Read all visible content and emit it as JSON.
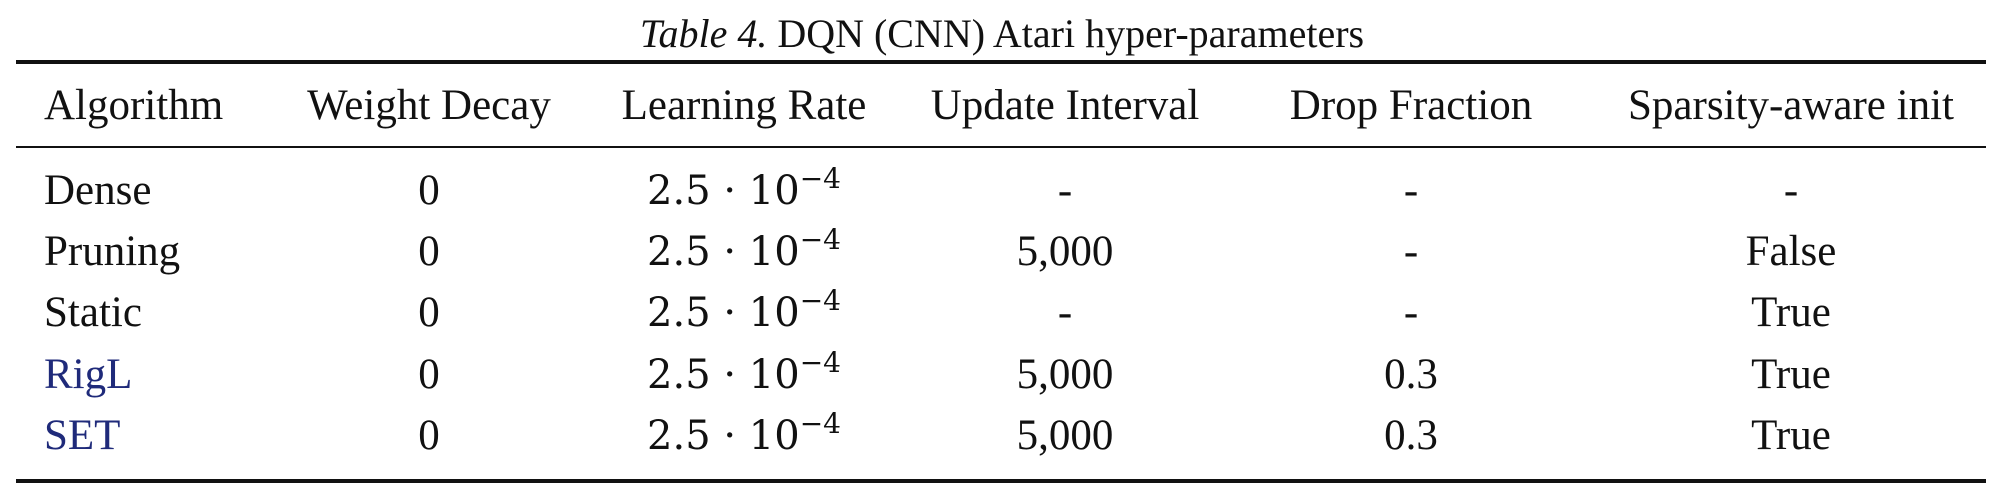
{
  "caption": {
    "label": "Table 4.",
    "title": "DQN (CNN) Atari hyper-parameters"
  },
  "headers": [
    "Algorithm",
    "Weight Decay",
    "Learning Rate",
    "Update Interval",
    "Drop Fraction",
    "Sparsity-aware init"
  ],
  "rows": [
    {
      "algorithm": "Dense",
      "weight_decay": "0",
      "lr_base": "2.5 · 10",
      "lr_exp": "−4",
      "update_interval": "-",
      "drop_fraction": "-",
      "sparsity_init": "-",
      "algorithm_color": "#111111"
    },
    {
      "algorithm": "Pruning",
      "weight_decay": "0",
      "lr_base": "2.5 · 10",
      "lr_exp": "−4",
      "update_interval": "5,000",
      "drop_fraction": "-",
      "sparsity_init": "False",
      "algorithm_color": "#111111"
    },
    {
      "algorithm": "Static",
      "weight_decay": "0",
      "lr_base": "2.5 · 10",
      "lr_exp": "−4",
      "update_interval": "-",
      "drop_fraction": "-",
      "sparsity_init": "True",
      "algorithm_color": "#111111"
    },
    {
      "algorithm": "RigL",
      "weight_decay": "0",
      "lr_base": "2.5 · 10",
      "lr_exp": "−4",
      "update_interval": "5,000",
      "drop_fraction": "0.3",
      "sparsity_init": "True",
      "algorithm_color": "#1f2a7a"
    },
    {
      "algorithm": "SET",
      "weight_decay": "0",
      "lr_base": "2.5 · 10",
      "lr_exp": "−4",
      "update_interval": "5,000",
      "drop_fraction": "0.3",
      "sparsity_init": "True",
      "algorithm_color": "#1f2a7a"
    }
  ]
}
